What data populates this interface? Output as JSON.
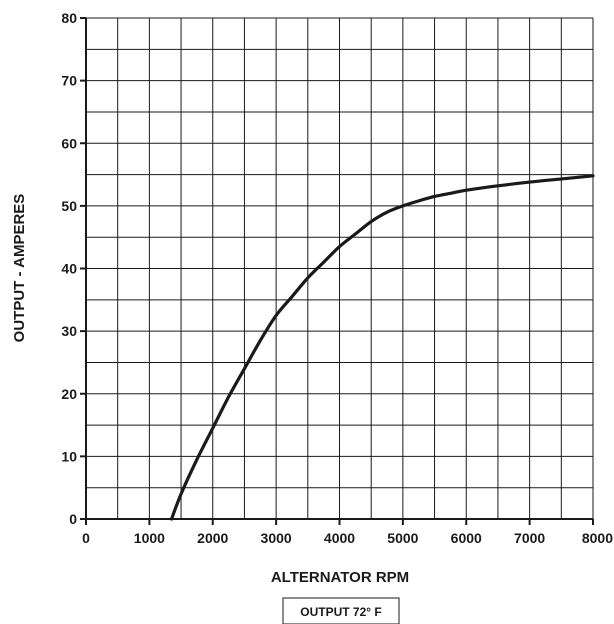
{
  "chart_data": {
    "type": "line",
    "title": "",
    "xlabel": "ALTERNATOR RPM",
    "ylabel": "OUTPUT - AMPERES",
    "xlim": [
      0,
      8000
    ],
    "ylim": [
      0,
      80
    ],
    "x_ticks": [
      0,
      1000,
      2000,
      3000,
      4000,
      5000,
      6000,
      7000,
      8000
    ],
    "x_tick_labels": [
      "0",
      "1000",
      "2000",
      "3000",
      "4000",
      "5000",
      "6000",
      "7000",
      "8000"
    ],
    "y_ticks": [
      0,
      10,
      20,
      30,
      40,
      50,
      60,
      70,
      80
    ],
    "y_tick_labels": [
      "0",
      "10",
      "20",
      "30",
      "40",
      "50",
      "60",
      "70",
      "80"
    ],
    "x_minor_step": 500,
    "y_minor_step": 5,
    "grid": true,
    "legend": "none",
    "note": "OUTPUT 72° F",
    "series": [
      {
        "color": "#1a1a1a",
        "x": [
          1350,
          1500,
          1750,
          2000,
          2250,
          2500,
          2750,
          3000,
          3250,
          3500,
          3750,
          4000,
          4250,
          4500,
          4750,
          5000,
          5250,
          5500,
          5750,
          6000,
          6500,
          7000,
          7500,
          8000
        ],
        "y": [
          0,
          4,
          9.5,
          14.5,
          19.5,
          24,
          28.5,
          32.5,
          35.5,
          38.5,
          41,
          43.5,
          45.5,
          47.5,
          49,
          50,
          50.8,
          51.5,
          52,
          52.5,
          53.2,
          53.8,
          54.3,
          54.8
        ]
      }
    ]
  }
}
